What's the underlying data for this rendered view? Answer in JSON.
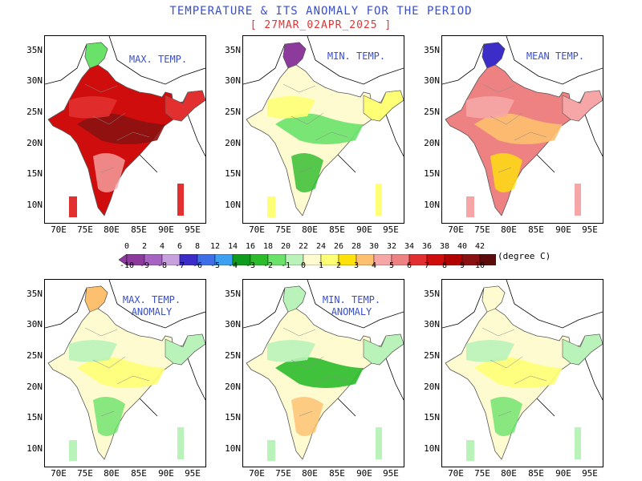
{
  "header": {
    "title": "TEMPERATURE & ITS ANOMALY FOR THE PERIOD",
    "subtitle": "[ 27MAR_02APR_2025 ]"
  },
  "panels": [
    {
      "label": "MAX. TEMP."
    },
    {
      "label": "MIN. TEMP."
    },
    {
      "label": "MEAN TEMP."
    },
    {
      "label": "MAX. TEMP.\nANOMALY"
    },
    {
      "label": "MIN. TEMP.\nANOMALY"
    },
    {
      "label": ""
    }
  ],
  "axes": {
    "lat_labels": [
      "35N",
      "30N",
      "25N",
      "20N",
      "15N",
      "10N"
    ],
    "lon_labels": [
      "70E",
      "75E",
      "80E",
      "85E",
      "90E",
      "95E"
    ]
  },
  "colorbar": {
    "temp_labels": [
      "0",
      "2",
      "4",
      "6",
      "8",
      "12",
      "14",
      "16",
      "18",
      "20",
      "22",
      "24",
      "26",
      "28",
      "30",
      "32",
      "34",
      "36",
      "38",
      "40",
      "42"
    ],
    "anomaly_labels": [
      "-10",
      "-9",
      "-8",
      "-7",
      "-6",
      "-5",
      "-4",
      "-3",
      "-2",
      "-1",
      "0",
      "1",
      "2",
      "3",
      "4",
      "5",
      "6",
      "7",
      "8",
      "9",
      "10"
    ],
    "unit": "(degree C)",
    "colors": [
      "#8c3a9c",
      "#a763c2",
      "#c7a0de",
      "#3c2cc8",
      "#3f6ee6",
      "#3da0f0",
      "#0f9c1e",
      "#2bbb2b",
      "#6ae26a",
      "#b9f3b9",
      "#fffbd0",
      "#ffff75",
      "#ffe20b",
      "#fdc06e",
      "#f6a6a6",
      "#ee8282",
      "#e23030",
      "#d00d0d",
      "#b00000",
      "#8a1111",
      "#5c0a0a"
    ]
  }
}
